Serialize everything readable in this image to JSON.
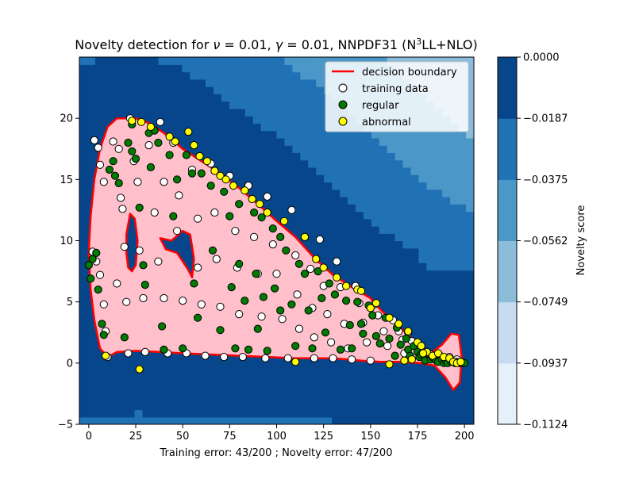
{
  "chart_data": {
    "type": "contour",
    "title": {
      "prefix": "Novelty detection for ",
      "nu_symbol": "ν",
      "nu_eq": " = 0.01, ",
      "gamma_symbol": "γ",
      "gamma_eq": " = 0.01, NNPDF31 (N",
      "sup": "3",
      "suffix": "LL+NLO)"
    },
    "xlabel": "Training error: 43/200 ; Novelty error: 47/200",
    "ylabel": "",
    "xlim": [
      -5,
      205
    ],
    "ylim": [
      -5,
      25
    ],
    "xticks": [
      0,
      25,
      50,
      75,
      100,
      125,
      150,
      175,
      200
    ],
    "yticks": [
      -5,
      0,
      5,
      10,
      15,
      20
    ],
    "grid": false,
    "legend_position": "top-right",
    "legend": [
      {
        "label": "decision boundary",
        "kind": "line",
        "color": "#ff0000"
      },
      {
        "label": "training data",
        "kind": "marker",
        "color": "#ffffff"
      },
      {
        "label": "regular",
        "kind": "marker",
        "color": "#007a00"
      },
      {
        "label": "abnormal",
        "kind": "marker",
        "color": "#ffff00"
      }
    ],
    "colorbar": {
      "label": "Novelty score",
      "levels": [
        -0.1124,
        -0.0937,
        -0.0749,
        -0.0562,
        -0.0375,
        -0.0187,
        0.0
      ],
      "tick_labels": [
        "−0.1124",
        "−0.0937",
        "−0.0749",
        "−0.0562",
        "−0.0375",
        "−0.0187",
        "0.0000"
      ],
      "colors": [
        "#e6f0fa",
        "#c6dbef",
        "#8bbddb",
        "#4a97c8",
        "#2171b5",
        "#08468c"
      ]
    },
    "inlier_fill": "#ffc0cb",
    "boundary_color": "#ff0000",
    "decision_boundary": [
      [
        0,
        9
      ],
      [
        1,
        12
      ],
      [
        3,
        15
      ],
      [
        6,
        17.5
      ],
      [
        10,
        19.3
      ],
      [
        15,
        20
      ],
      [
        25,
        20
      ],
      [
        32,
        19.6
      ],
      [
        40,
        18.8
      ],
      [
        50,
        17.5
      ],
      [
        60,
        16.5
      ],
      [
        70,
        15.5
      ],
      [
        80,
        14.3
      ],
      [
        90,
        13
      ],
      [
        100,
        11.6
      ],
      [
        110,
        10.3
      ],
      [
        120,
        8.6
      ],
      [
        130,
        7.2
      ],
      [
        140,
        6.2
      ],
      [
        150,
        5.3
      ],
      [
        155,
        4.4
      ],
      [
        162,
        3.4
      ],
      [
        170,
        2.3
      ],
      [
        176,
        1.2
      ],
      [
        182,
        0.8
      ],
      [
        188,
        1.5
      ],
      [
        193,
        2.4
      ],
      [
        197,
        2.3
      ],
      [
        198.5,
        0.5
      ],
      [
        197.5,
        -1.6
      ],
      [
        194,
        -2.2
      ],
      [
        190,
        -1.2
      ],
      [
        184,
        -0.2
      ],
      [
        176,
        0
      ],
      [
        165,
        0.1
      ],
      [
        155,
        0.1
      ],
      [
        145,
        0.2
      ],
      [
        130,
        0.4
      ],
      [
        110,
        0.4
      ],
      [
        95,
        0.5
      ],
      [
        80,
        0.6
      ],
      [
        65,
        0.7
      ],
      [
        50,
        0.8
      ],
      [
        38,
        0.9
      ],
      [
        25,
        1
      ],
      [
        15,
        0.9
      ],
      [
        10,
        0.5
      ],
      [
        6,
        1.2
      ],
      [
        3,
        3.5
      ],
      [
        1,
        6
      ],
      [
        0,
        9
      ]
    ],
    "holes": [
      [
        [
          20,
          10.5
        ],
        [
          22,
          12.2
        ],
        [
          24.5,
          11.8
        ],
        [
          26,
          10
        ],
        [
          25,
          8
        ],
        [
          23,
          7.5
        ],
        [
          21,
          7.8
        ],
        [
          20,
          9
        ]
      ],
      [
        [
          38,
          10.2
        ],
        [
          44,
          10
        ],
        [
          50,
          10.8
        ],
        [
          54,
          10.5
        ],
        [
          56,
          8.5
        ],
        [
          55,
          7
        ],
        [
          53,
          7.6
        ],
        [
          47,
          9
        ],
        [
          41,
          9.3
        ]
      ]
    ],
    "series": [
      {
        "name": "training data",
        "color": "#ffffff",
        "points": [
          [
            2,
            9.1
          ],
          [
            4,
            8.3
          ],
          [
            6,
            7.2
          ],
          [
            8,
            4.8
          ],
          [
            9,
            2.6
          ],
          [
            10,
            0.5
          ],
          [
            15,
            6.5
          ],
          [
            17,
            13.5
          ],
          [
            19,
            9.5
          ],
          [
            20,
            5
          ],
          [
            21,
            0.8
          ],
          [
            22,
            20
          ],
          [
            24,
            16.5
          ],
          [
            26,
            14.8
          ],
          [
            27,
            9.2
          ],
          [
            29,
            5.3
          ],
          [
            30,
            0.9
          ],
          [
            32,
            17.8
          ],
          [
            35,
            12.3
          ],
          [
            37,
            8.3
          ],
          [
            38,
            19.7
          ],
          [
            40,
            14.8
          ],
          [
            40,
            5.3
          ],
          [
            42,
            0.8
          ],
          [
            45,
            18
          ],
          [
            47,
            10.8
          ],
          [
            48,
            13.7
          ],
          [
            50,
            5.1
          ],
          [
            52,
            0.8
          ],
          [
            55,
            15.8
          ],
          [
            58,
            11.8
          ],
          [
            58,
            7.8
          ],
          [
            60,
            4.8
          ],
          [
            62,
            0.6
          ],
          [
            65,
            16.3
          ],
          [
            67,
            12.3
          ],
          [
            68,
            8.5
          ],
          [
            70,
            4.6
          ],
          [
            72,
            0.5
          ],
          [
            75,
            15.3
          ],
          [
            78,
            10.8
          ],
          [
            79,
            7.8
          ],
          [
            80,
            4
          ],
          [
            82,
            0.5
          ],
          [
            85,
            14.5
          ],
          [
            88,
            10.3
          ],
          [
            90,
            7.3
          ],
          [
            92,
            3.8
          ],
          [
            94,
            0.4
          ],
          [
            95,
            13.6
          ],
          [
            98,
            9.7
          ],
          [
            100,
            7.3
          ],
          [
            103,
            3.6
          ],
          [
            106,
            0.4
          ],
          [
            108,
            12.5
          ],
          [
            110,
            8.8
          ],
          [
            111,
            5.6
          ],
          [
            112,
            2.8
          ],
          [
            115,
            10.3
          ],
          [
            118,
            7.7
          ],
          [
            119,
            4.5
          ],
          [
            120,
            2.1
          ],
          [
            120,
            0.4
          ],
          [
            123,
            10.1
          ],
          [
            125,
            6.3
          ],
          [
            127,
            4
          ],
          [
            129,
            1.7
          ],
          [
            130,
            0.4
          ],
          [
            132,
            8.3
          ],
          [
            134,
            6.2
          ],
          [
            136,
            3.2
          ],
          [
            138,
            1.2
          ],
          [
            140,
            0.3
          ],
          [
            142,
            6.3
          ],
          [
            144,
            4.9
          ],
          [
            146,
            3.3
          ],
          [
            148,
            1.7
          ],
          [
            150,
            0.2
          ],
          [
            152,
            4.8
          ],
          [
            154,
            3.9
          ],
          [
            157,
            2.6
          ],
          [
            159,
            1.4
          ],
          [
            162,
            3.5
          ],
          [
            165,
            2.6
          ],
          [
            167,
            1.9
          ],
          [
            168,
            0.8
          ],
          [
            170,
            2.5
          ],
          [
            172,
            1.8
          ],
          [
            175,
            1.3
          ],
          [
            178,
            0.8
          ],
          [
            180,
            0.4
          ],
          [
            182,
            0.7
          ],
          [
            185,
            0.4
          ],
          [
            187,
            0.6
          ],
          [
            190,
            0.3
          ],
          [
            192,
            0.5
          ],
          [
            194,
            0.2
          ],
          [
            196,
            0.3
          ],
          [
            198,
            0.1
          ],
          [
            3,
            18.2
          ],
          [
            5,
            17.6
          ],
          [
            6,
            16.2
          ],
          [
            8,
            14.8
          ],
          [
            13,
            18.1
          ],
          [
            16,
            17.5
          ],
          [
            18,
            12.6
          ]
        ]
      },
      {
        "name": "regular",
        "color": "#007a00",
        "points": [
          [
            0,
            8
          ],
          [
            1,
            6.9
          ],
          [
            2,
            8.5
          ],
          [
            4,
            9
          ],
          [
            5,
            6
          ],
          [
            7,
            3.2
          ],
          [
            8,
            2.3
          ],
          [
            11,
            15.8
          ],
          [
            13,
            16.5
          ],
          [
            14,
            15.3
          ],
          [
            16,
            14.7
          ],
          [
            19,
            2.1
          ],
          [
            21,
            18
          ],
          [
            23,
            17.3
          ],
          [
            23,
            19.5
          ],
          [
            25,
            16.7
          ],
          [
            27,
            12.7
          ],
          [
            29,
            8
          ],
          [
            30,
            6.4
          ],
          [
            32,
            18.8
          ],
          [
            33,
            16
          ],
          [
            35,
            19
          ],
          [
            37,
            18
          ],
          [
            39,
            3
          ],
          [
            40,
            1.1
          ],
          [
            43,
            17
          ],
          [
            45,
            12
          ],
          [
            47,
            15
          ],
          [
            50,
            1.2
          ],
          [
            52,
            17
          ],
          [
            55,
            15.5
          ],
          [
            56,
            6.5
          ],
          [
            58,
            3.7
          ],
          [
            60,
            15.5
          ],
          [
            65,
            14.5
          ],
          [
            66,
            9.2
          ],
          [
            70,
            2.7
          ],
          [
            72,
            14
          ],
          [
            75,
            12
          ],
          [
            76,
            6.2
          ],
          [
            78,
            1.2
          ],
          [
            80,
            13
          ],
          [
            80,
            8.1
          ],
          [
            83,
            5.1
          ],
          [
            85,
            1.1
          ],
          [
            88,
            12.3
          ],
          [
            89,
            7.3
          ],
          [
            90,
            2.8
          ],
          [
            92,
            11.9
          ],
          [
            93,
            5.4
          ],
          [
            95,
            1
          ],
          [
            98,
            11
          ],
          [
            99,
            6.1
          ],
          [
            102,
            10.3
          ],
          [
            102,
            4.3
          ],
          [
            105,
            9.2
          ],
          [
            108,
            4.8
          ],
          [
            110,
            1.4
          ],
          [
            112,
            8.1
          ],
          [
            115,
            7.3
          ],
          [
            117,
            4.3
          ],
          [
            119,
            1.2
          ],
          [
            122,
            7.5
          ],
          [
            124,
            5.3
          ],
          [
            126,
            2.5
          ],
          [
            128,
            6.5
          ],
          [
            131,
            5.6
          ],
          [
            134,
            1.1
          ],
          [
            137,
            5.1
          ],
          [
            139,
            3.1
          ],
          [
            140,
            1.2
          ],
          [
            143,
            5
          ],
          [
            145,
            3.2
          ],
          [
            146,
            2.4
          ],
          [
            149,
            4.7
          ],
          [
            151,
            3.9
          ],
          [
            153,
            2.2
          ],
          [
            155,
            1.6
          ],
          [
            158,
            3.7
          ],
          [
            160,
            2
          ],
          [
            163,
            0.6
          ],
          [
            164,
            2.9
          ],
          [
            166,
            1.5
          ],
          [
            169,
            2
          ],
          [
            170,
            1.1
          ],
          [
            171,
            0.6
          ],
          [
            173,
            1.4
          ],
          [
            175,
            0.9
          ],
          [
            176,
            0.5
          ],
          [
            177,
            0.7
          ],
          [
            179,
            0.2
          ],
          [
            180,
            0.8
          ],
          [
            182,
            0.3
          ],
          [
            183,
            0.5
          ],
          [
            185,
            0.2
          ],
          [
            186,
            0.1
          ],
          [
            188,
            0.3
          ],
          [
            189,
            0
          ],
          [
            190,
            0.2
          ],
          [
            191,
            0
          ],
          [
            193,
            0.1
          ],
          [
            195,
            0
          ],
          [
            196,
            0.1
          ],
          [
            197,
            0
          ],
          [
            199,
            0
          ],
          [
            200,
            0
          ]
        ]
      },
      {
        "name": "abnormal",
        "color": "#ffff00",
        "points": [
          [
            9,
            0.6
          ],
          [
            27,
            -0.5
          ],
          [
            23,
            19.8
          ],
          [
            28,
            19.7
          ],
          [
            33,
            19.3
          ],
          [
            43,
            18.5
          ],
          [
            46,
            18.1
          ],
          [
            53,
            18.9
          ],
          [
            56,
            17.8
          ],
          [
            59,
            16.9
          ],
          [
            63,
            16.5
          ],
          [
            67,
            15.7
          ],
          [
            70,
            15.3
          ],
          [
            73,
            15
          ],
          [
            77,
            14.5
          ],
          [
            83,
            14.1
          ],
          [
            87,
            13.4
          ],
          [
            91,
            13
          ],
          [
            95,
            12.3
          ],
          [
            104,
            11.6
          ],
          [
            110,
            0.1
          ],
          [
            115,
            10.3
          ],
          [
            121,
            8.5
          ],
          [
            125,
            7.8
          ],
          [
            132,
            7
          ],
          [
            137,
            6.3
          ],
          [
            143,
            6
          ],
          [
            145,
            5.9
          ],
          [
            153,
            4.9
          ],
          [
            160,
            3.7
          ],
          [
            160,
            -0.1
          ],
          [
            165,
            3.2
          ],
          [
            170,
            2.6
          ],
          [
            175,
            1.7
          ],
          [
            177,
            1.4
          ],
          [
            180,
            0.9
          ],
          [
            183,
            0.6
          ],
          [
            186,
            0.8
          ],
          [
            189,
            0.5
          ],
          [
            192,
            0.4
          ],
          [
            194,
            0.1
          ],
          [
            196,
            0
          ],
          [
            198,
            0.1
          ],
          [
            168,
            0.2
          ],
          [
            150,
            4.5
          ],
          [
            178,
            0.8
          ],
          [
            172,
            0.3
          ]
        ]
      }
    ]
  }
}
